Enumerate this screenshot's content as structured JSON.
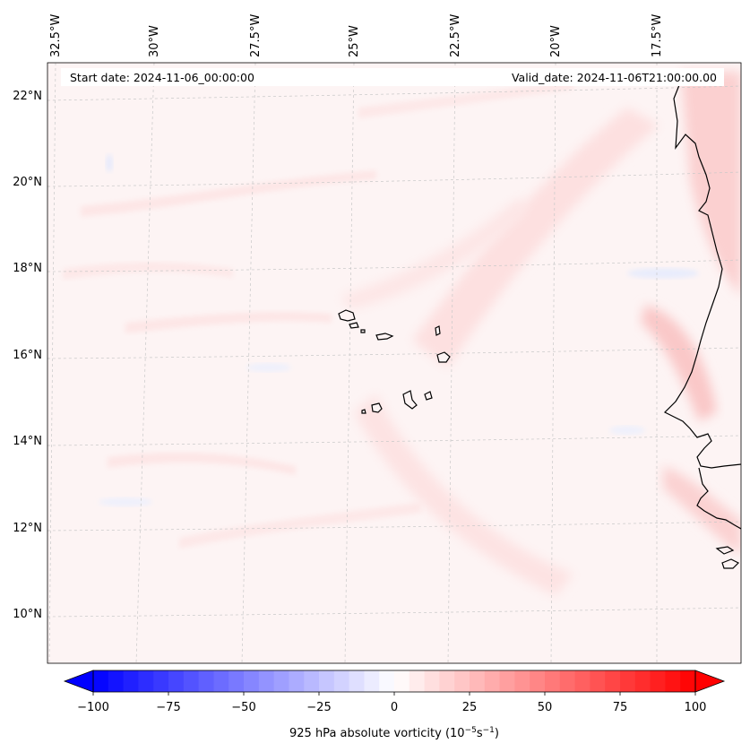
{
  "header": {
    "start_date": "Start date: 2024-11-06_00:00:00",
    "valid_date": "Valid_date: 2024-11-06T21:00:00.00"
  },
  "lon_labels": [
    "32.5°W",
    "30°W",
    "27.5°W",
    "25°W",
    "22.5°W",
    "20°W",
    "17.5°W"
  ],
  "lat_labels": [
    "22°N",
    "20°N",
    "18°N",
    "16°N",
    "14°N",
    "12°N",
    "10°N"
  ],
  "colorbar": {
    "ticks": [
      "−100",
      "−75",
      "−50",
      "−25",
      "0",
      "25",
      "50",
      "75",
      "100"
    ],
    "label": "925 hPa absolute vorticity (10",
    "label_exp1": "−5",
    "label_mid": "s",
    "label_exp2": "−1",
    "label_end": ")",
    "range": [
      -100,
      100
    ],
    "levels": 40,
    "colormap": "bwr"
  },
  "colors": {
    "background": "#fdf4f4",
    "positive": "#ff0000",
    "negative": "#0000ff",
    "coast": "#000000",
    "grid": "#c8c8c8"
  }
}
